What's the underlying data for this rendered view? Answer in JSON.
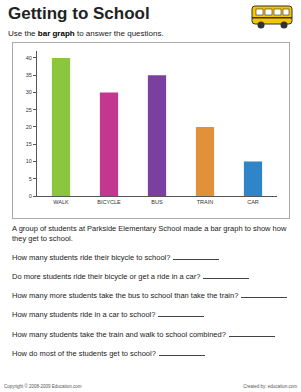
{
  "header": {
    "title": "Getting to School",
    "subtitle": [
      "Use the ",
      "bar graph",
      " to answer the questions."
    ]
  },
  "chart_data": {
    "type": "bar",
    "categories": [
      "WALK",
      "BICYCLE",
      "BUS",
      "TRAIN",
      "CAR"
    ],
    "values": [
      40,
      30,
      35,
      20,
      10
    ],
    "colors": [
      "#8cc63f",
      "#c2378f",
      "#7b3fa0",
      "#e0913a",
      "#2e86c9"
    ],
    "ylim": [
      0,
      42
    ],
    "yticks": [
      0,
      5,
      10,
      15,
      20,
      25,
      30,
      35,
      40
    ],
    "grid": false
  },
  "text": "A group of students at Parkside Elementary School made a bar graph to show how they get to school.",
  "questions": [
    "How many students ride their bicycle to school?",
    "Do more students ride their bicycle or get a ride in a car?",
    "How many more students take the bus to school than take the train?",
    "How many students ride in a car to school?",
    "How many students take the train and walk to school combined?",
    "How do most of the students get to school?"
  ],
  "footer": {
    "copyright": "Copyright © 2008-2009 Education.com",
    "credit": "Created by: education.com"
  }
}
